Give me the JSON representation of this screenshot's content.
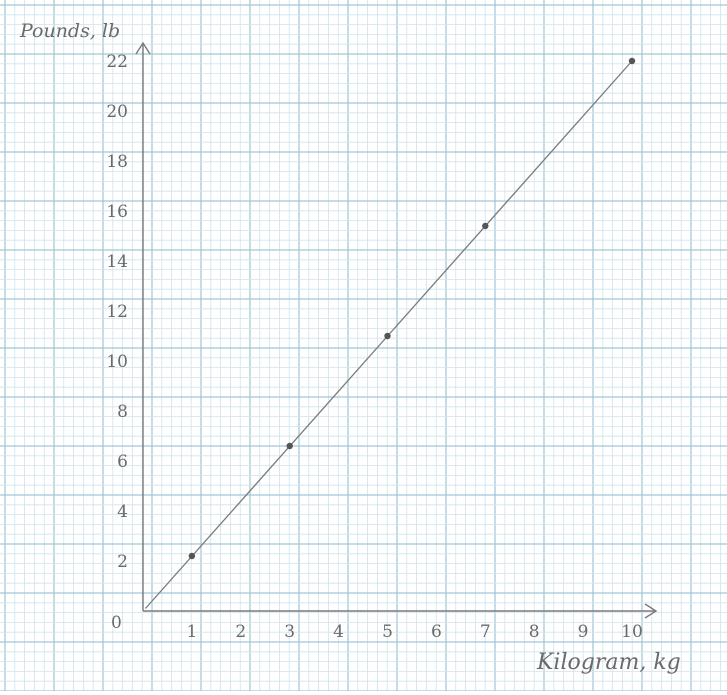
{
  "chart_data": {
    "type": "scatter",
    "title": "",
    "xlabel": "Kilogram, kg",
    "ylabel": "Pounds, lb",
    "origin_label": "0",
    "x_ticks": [
      "1",
      "2",
      "3",
      "4",
      "5",
      "6",
      "7",
      "8",
      "9",
      "10"
    ],
    "y_ticks": [
      "2",
      "4",
      "6",
      "8",
      "10",
      "12",
      "14",
      "16",
      "18",
      "20",
      "22"
    ],
    "xlim": [
      0,
      10.5
    ],
    "ylim": [
      0,
      23
    ],
    "grid": true,
    "points": [
      {
        "x": 1,
        "y": 2.2
      },
      {
        "x": 3,
        "y": 6.6
      },
      {
        "x": 5,
        "y": 11.0
      },
      {
        "x": 7,
        "y": 15.4
      },
      {
        "x": 10,
        "y": 22.0
      }
    ],
    "trend_line": {
      "x": [
        0.05,
        10
      ],
      "y": [
        0.1,
        22.0
      ]
    }
  },
  "colors": {
    "paper": "#ffffff",
    "grid_minor": "#cfe3ec",
    "grid_major": "#9fc6d6",
    "pencil": "#7a7a7a",
    "point": "#555555"
  }
}
